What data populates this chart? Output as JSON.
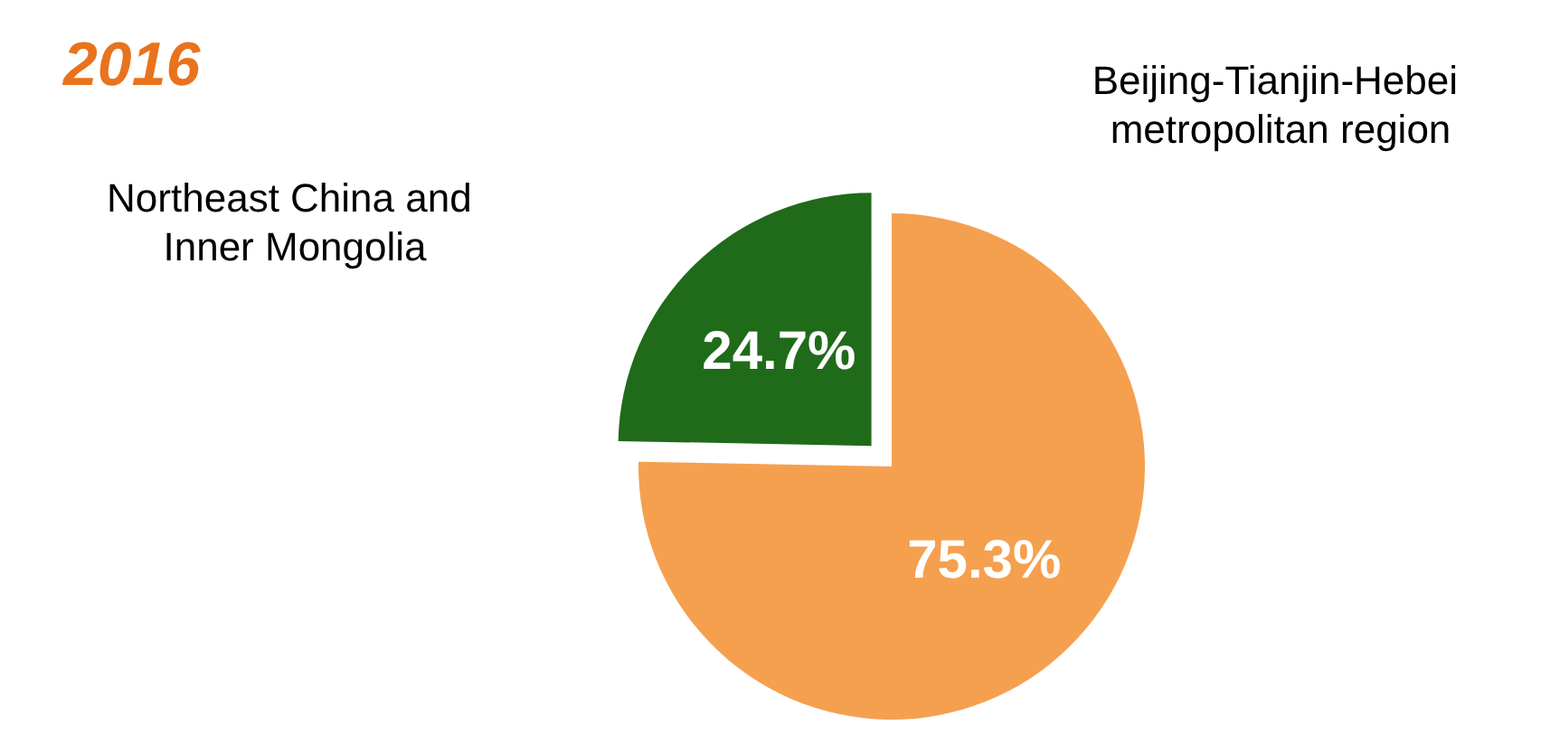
{
  "chart_data": {
    "type": "pie",
    "title": "2016",
    "categories": [
      "Beijing-Tianjin-Hebei metropolitan region",
      "Northeast China and Inner Mongolia"
    ],
    "values": [
      75.3,
      24.7
    ],
    "colors": [
      "#f5a04f",
      "#1f6b1a"
    ],
    "value_labels": [
      "75.3%",
      "24.7%"
    ]
  }
}
